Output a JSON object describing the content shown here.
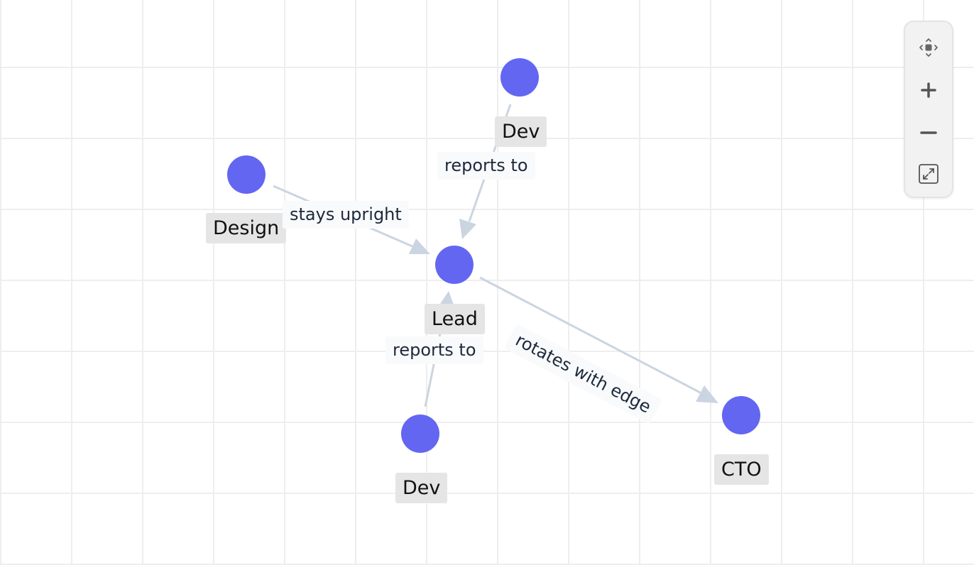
{
  "diagram": {
    "nodes": [
      {
        "id": "dev-top",
        "label": "Dev"
      },
      {
        "id": "design",
        "label": "Design"
      },
      {
        "id": "lead",
        "label": "Lead"
      },
      {
        "id": "dev-bottom",
        "label": "Dev"
      },
      {
        "id": "cto",
        "label": "CTO"
      }
    ],
    "edges": [
      {
        "from": "dev-top",
        "to": "lead",
        "label": "reports to"
      },
      {
        "from": "design",
        "to": "lead",
        "label": "stays upright"
      },
      {
        "from": "dev-bottom",
        "to": "lead",
        "label": "reports to"
      },
      {
        "from": "lead",
        "to": "cto",
        "label": "rotates with edge"
      }
    ],
    "colors": {
      "node": "#6366f1",
      "edge": "#cbd5e1",
      "node_label_bg": "#e5e5e5",
      "grid": "#eeeeee"
    }
  },
  "controls": {
    "buttons": [
      {
        "name": "pan-icon"
      },
      {
        "name": "zoom-in-icon"
      },
      {
        "name": "zoom-out-icon"
      },
      {
        "name": "fit-view-icon"
      }
    ]
  }
}
